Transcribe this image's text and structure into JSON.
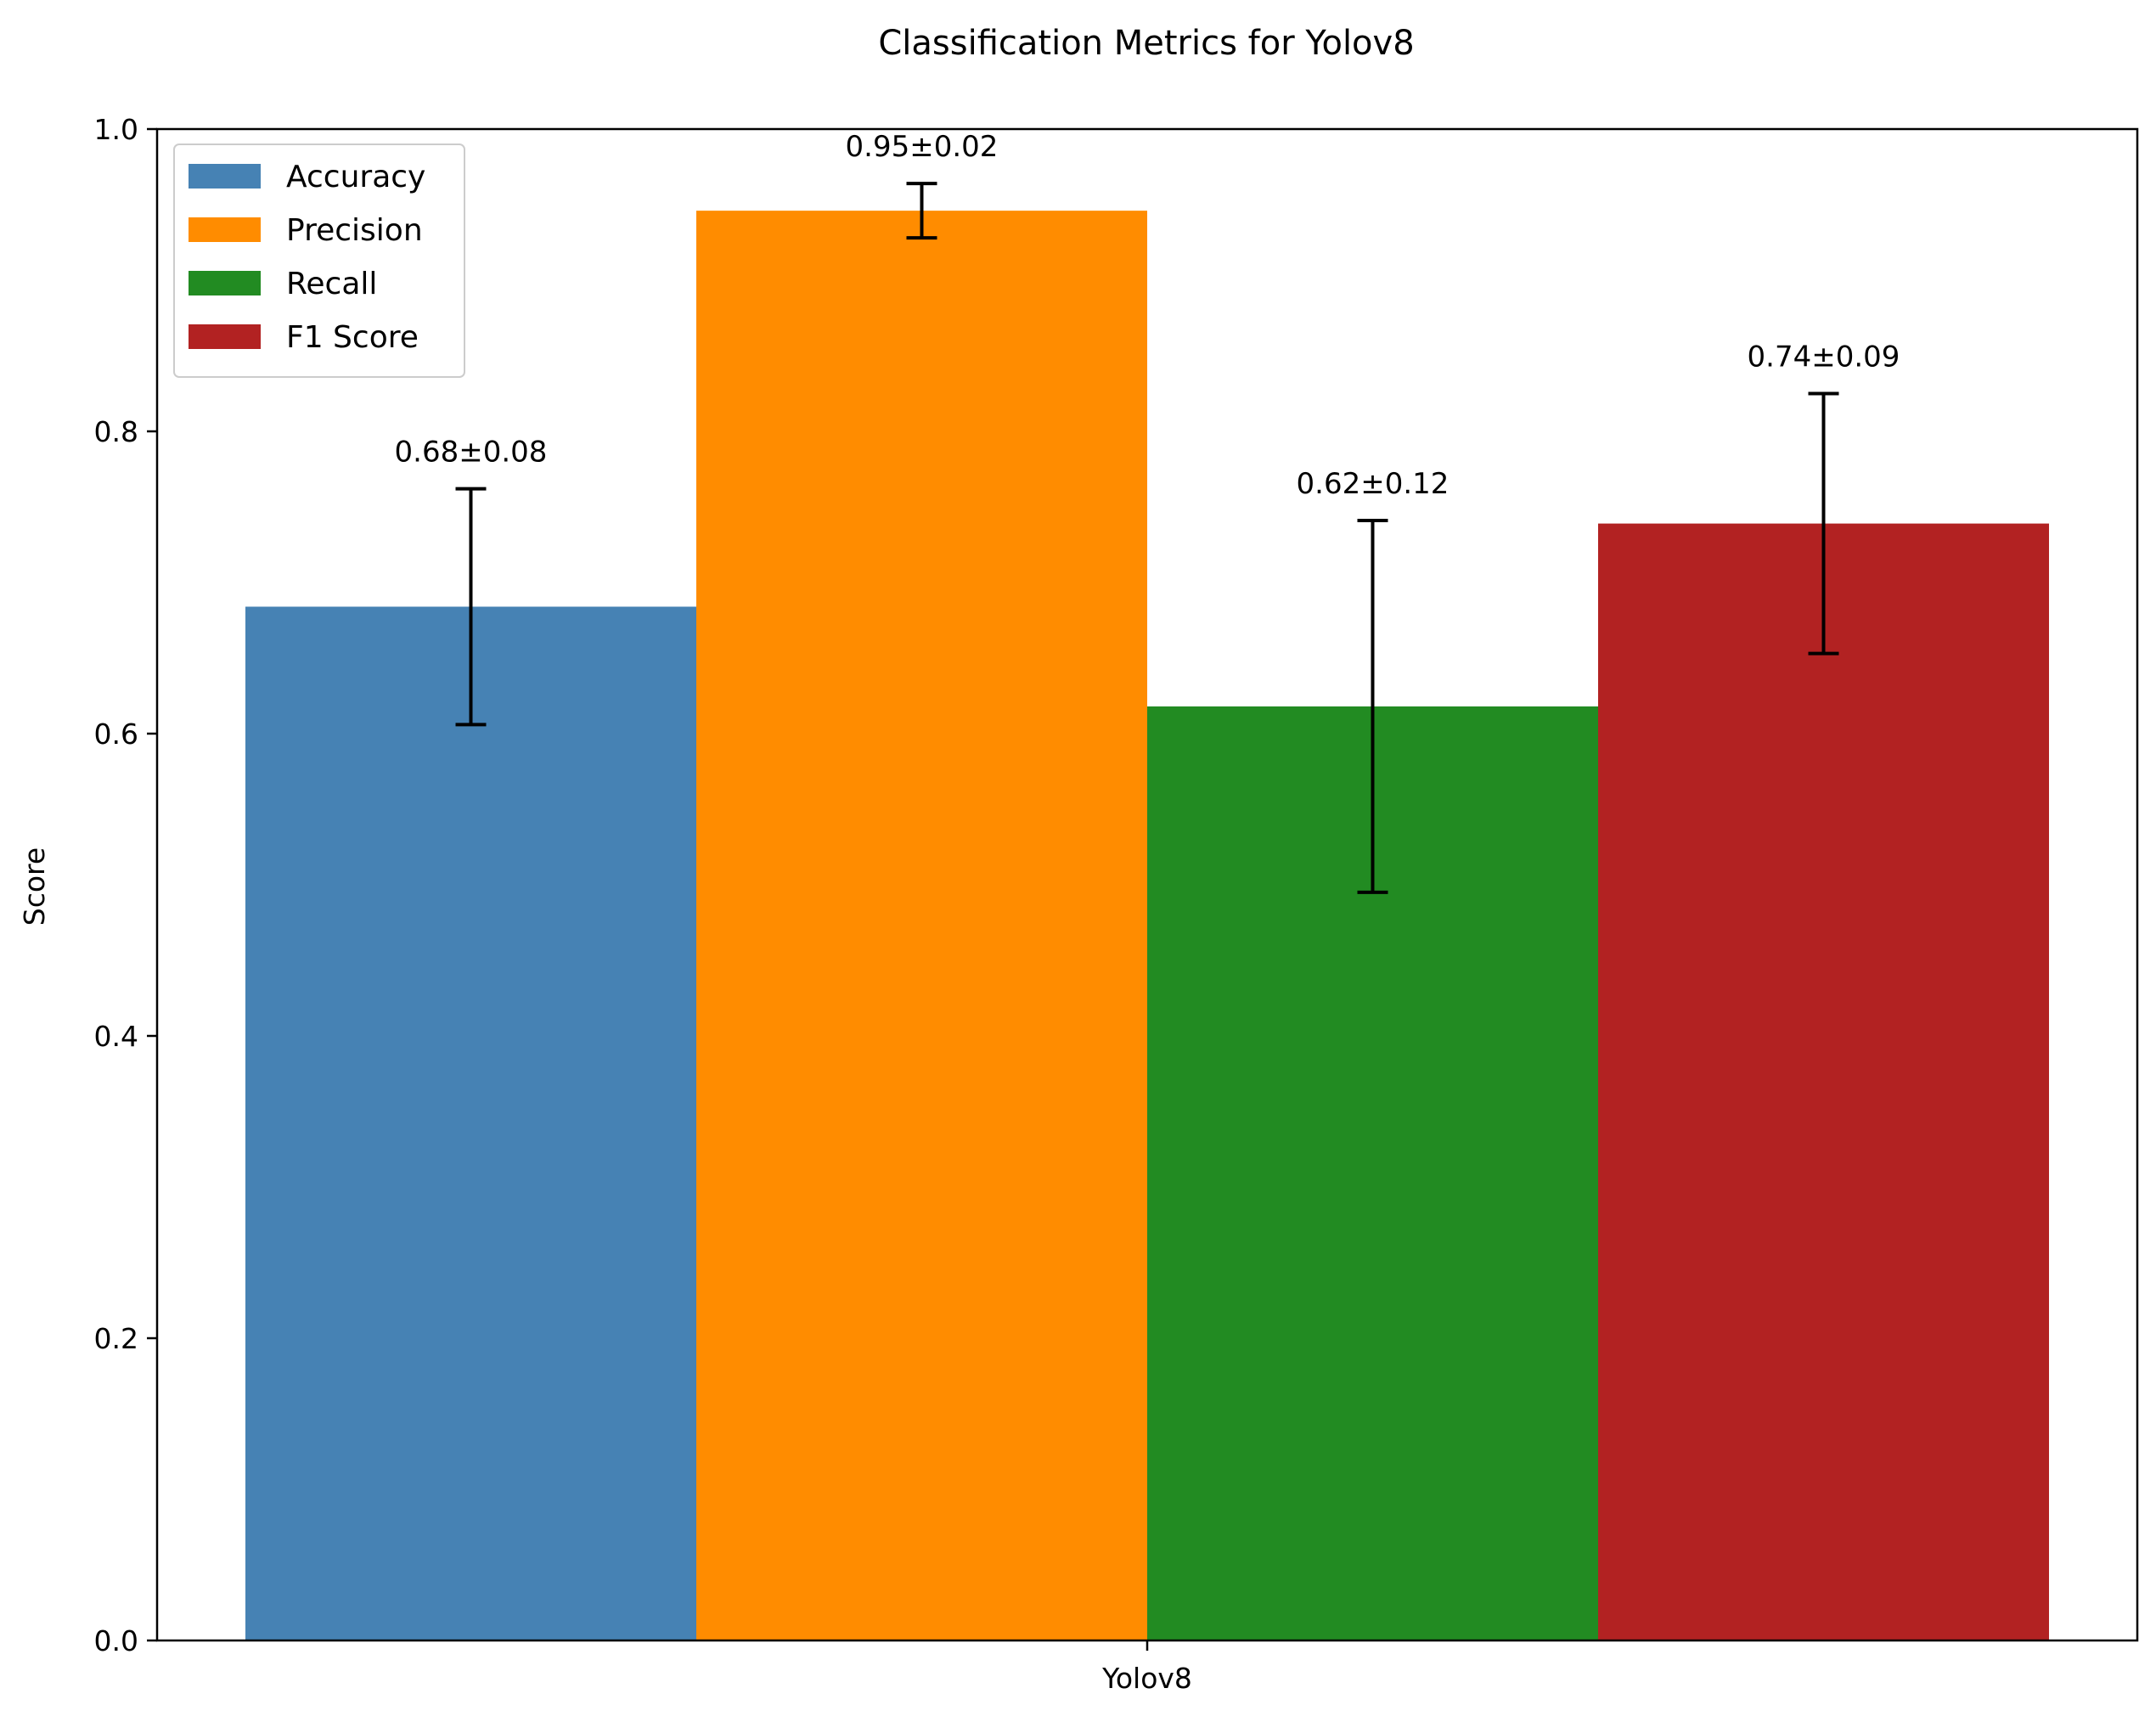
{
  "chart_data": {
    "type": "bar",
    "title": "Classification Metrics for Yolov8",
    "xlabel": "",
    "ylabel": "Score",
    "categories": [
      "Yolov8"
    ],
    "ylim": [
      0,
      1.0
    ],
    "yticks": [
      "0.0",
      "0.2",
      "0.4",
      "0.6",
      "0.8",
      "1.0"
    ],
    "grid": false,
    "legend_position": "top-left",
    "series": [
      {
        "name": "Accuracy",
        "value": 0.684,
        "error": 0.078,
        "label": "0.68±0.08",
        "color": "#4682b4"
      },
      {
        "name": "Precision",
        "value": 0.946,
        "error": 0.018,
        "label": "0.95±0.02",
        "color": "#ff8c00"
      },
      {
        "name": "Recall",
        "value": 0.618,
        "error": 0.123,
        "label": "0.62±0.12",
        "color": "#228b22"
      },
      {
        "name": "F1 Score",
        "value": 0.739,
        "error": 0.086,
        "label": "0.74±0.09",
        "color": "#b22222"
      }
    ]
  }
}
